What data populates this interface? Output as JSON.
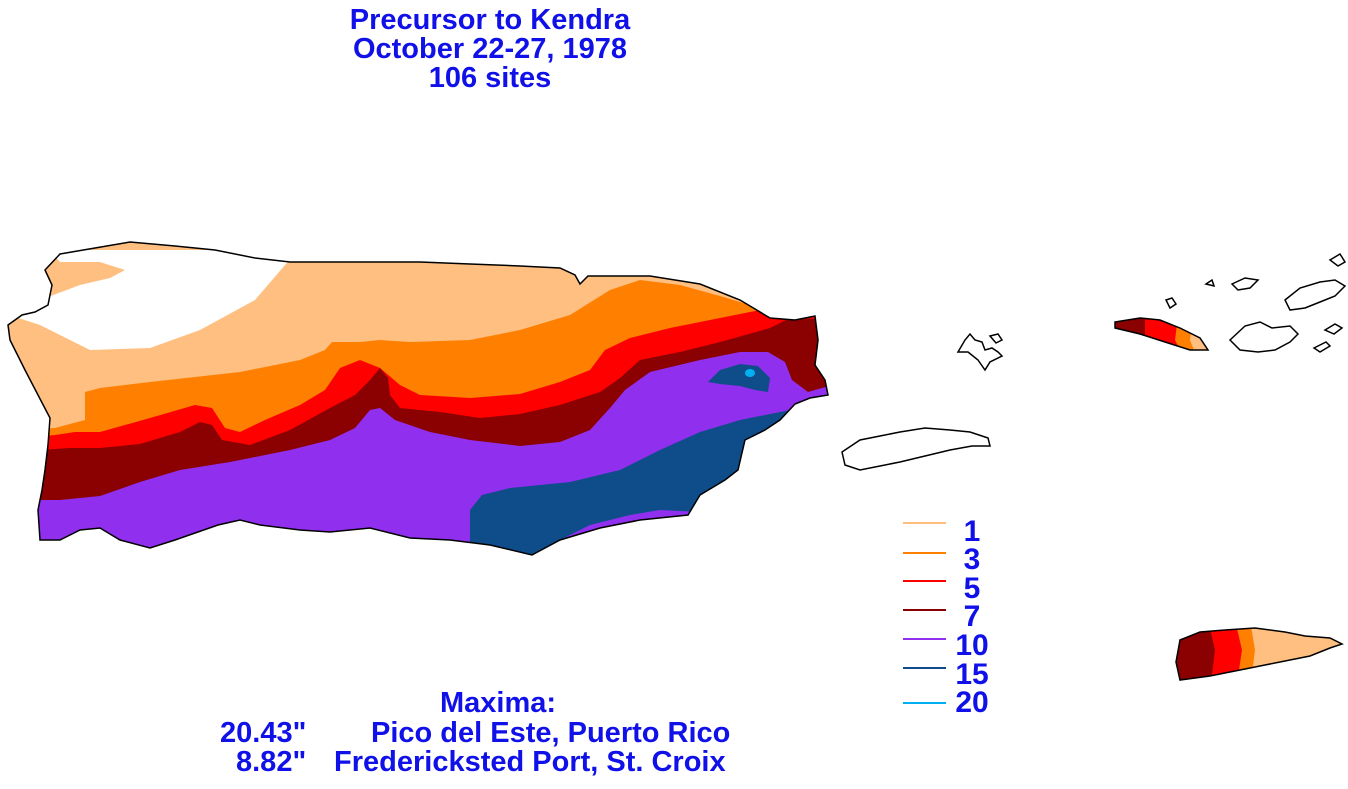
{
  "title": {
    "line1": "Precursor to Kendra",
    "line2": "October 22-27, 1978",
    "line3": "106 sites"
  },
  "colors": {
    "text": "#1010e8",
    "outline": "#000000",
    "background": "#ffffff"
  },
  "legend": {
    "items": [
      {
        "label": "1",
        "color": "#ffbf80"
      },
      {
        "label": "3",
        "color": "#ff8000"
      },
      {
        "label": "5",
        "color": "#ff0000"
      },
      {
        "label": "7",
        "color": "#8b0000"
      },
      {
        "label": "10",
        "color": "#9030ee"
      },
      {
        "label": "15",
        "color": "#0f4c8a"
      },
      {
        "label": "20",
        "color": "#00b0f0"
      }
    ]
  },
  "maxima": {
    "heading": "Maxima:",
    "rows": [
      {
        "value": "20.43\"",
        "location": "Pico del Este, Puerto Rico"
      },
      {
        "value": "8.82\"",
        "location": "Fredericksted Port, St. Croix"
      }
    ]
  },
  "islands": {
    "puerto_rico": "puerto-rico",
    "vieques": "vieques",
    "culebra": "culebra",
    "st_thomas": "st-thomas",
    "st_john": "st-john",
    "tortola": "tortola",
    "virgin_gorda": "virgin-gorda",
    "st_croix": "st-croix"
  }
}
